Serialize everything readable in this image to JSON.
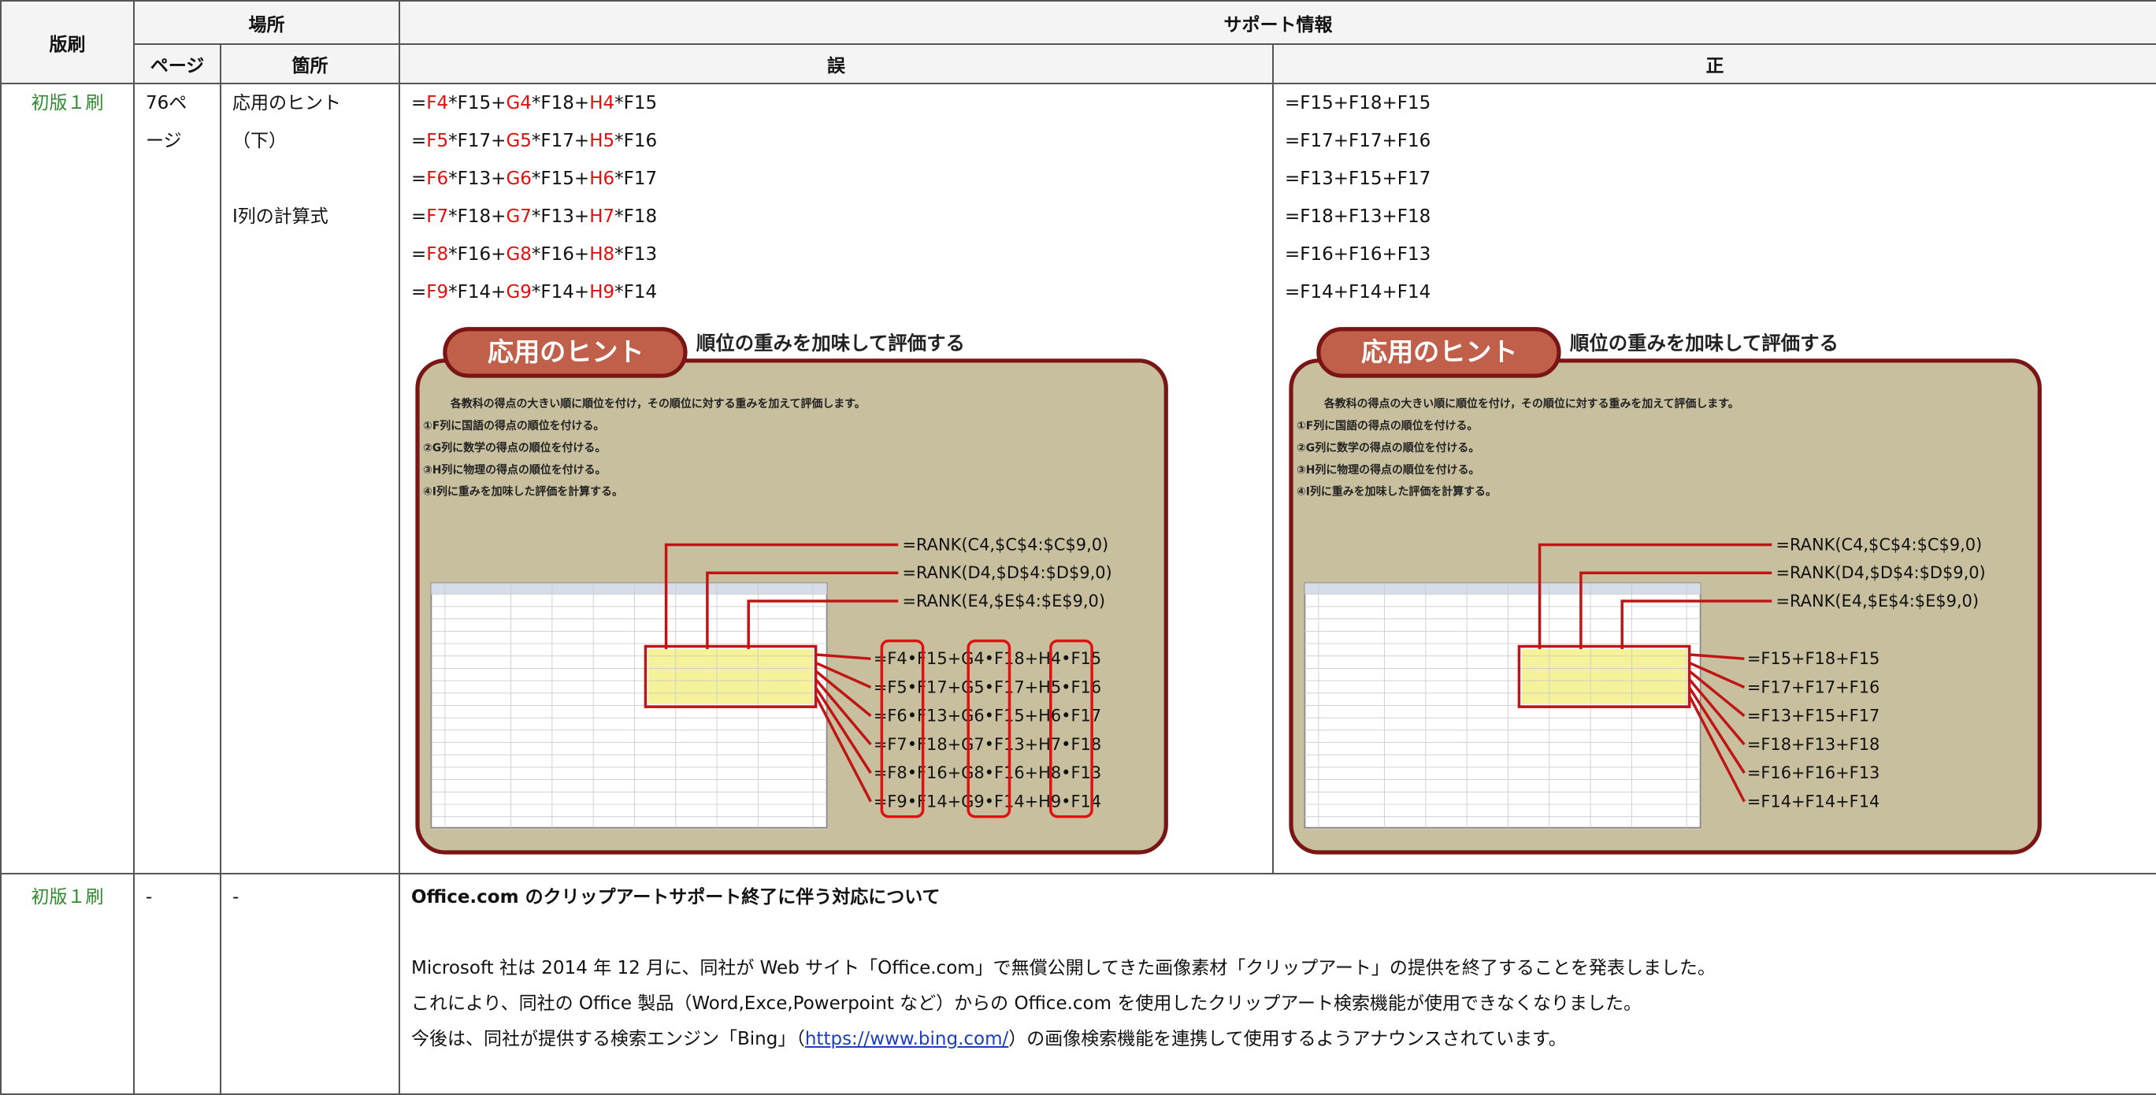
{
  "header": {
    "edition": "版刷",
    "place": "場所",
    "support": "サポート情報",
    "page": "ページ",
    "location": "箇所",
    "wrong": "誤",
    "right": "正"
  },
  "rows": [
    {
      "edition": "初版１刷",
      "page": "76ページ",
      "location": [
        "応用のヒント",
        "（下）",
        "",
        "I列の計算式"
      ],
      "wrong": [
        [
          "=",
          "F4",
          "*F15+",
          "G4",
          "*F18+",
          "H4",
          "*F15"
        ],
        [
          "=",
          "F5",
          "*F17+",
          "G5",
          "*F17+",
          "H5",
          "*F16"
        ],
        [
          "=",
          "F6",
          "*F13+",
          "G6",
          "*F15+",
          "H6",
          "*F17"
        ],
        [
          "=",
          "F7",
          "*F18+",
          "G7",
          "*F13+",
          "H7",
          "*F18"
        ],
        [
          "=",
          "F8",
          "*F16+",
          "G8",
          "*F16+",
          "H8",
          "*F13"
        ],
        [
          "=",
          "F9",
          "*F14+",
          "G9",
          "*F14+",
          "H9",
          "*F14"
        ]
      ],
      "right": [
        "=F15+F18+F15",
        "=F17+F17+F16",
        "=F13+F15+F17",
        "=F18+F13+F18",
        "=F16+F16+F13",
        "=F14+F14+F14"
      ],
      "figure": {
        "title": "応用のヒント",
        "subtitle": "順位の重みを加味して評価する",
        "lines": [
          "各教科の得点の大きい順に順位を付け，その順位に対する重みを加えて評価します。",
          "①F列に国語の得点の順位を付ける。",
          "②G列に数学の得点の順位を付ける。",
          "③H列に物理の得点の順位を付ける。",
          "④I列に重みを加味した評価を計算する。"
        ],
        "rank": [
          "=RANK(C4,$C$4:$C$9,0)",
          "=RANK(D4,$D$4:$D$9,0)",
          "=RANK(E4,$E$4:$E$9,0)"
        ]
      },
      "wrong_figure": [
        "=F4•F15+G4•F18+H4•F15",
        "=F5•F17+G5•F17+H5•F16",
        "=F6•F13+G6•F15+H6•F17",
        "=F7•F18+G7•F13+H7•F18",
        "=F8•F16+G8•F16+H8•F13",
        "=F9•F14+G9•F14+H9•F14"
      ],
      "right_figure": [
        "=F15+F18+F15",
        "=F17+F17+F16",
        "=F13+F15+F17",
        "=F18+F13+F18",
        "=F16+F16+F13",
        "=F14+F14+F14"
      ]
    },
    {
      "edition": "初版１刷",
      "page": "-",
      "location": "-",
      "title": "Office.com のクリップアートサポート終了に伴う対応について",
      "paragraphs": [
        "Microsoft 社は 2014 年 12 月に、同社が Web サイト「Office.com」で無償公開してきた画像素材「クリップアート」の提供を終了することを発表しました。",
        "これにより、同社の Office 製品（Word,Exce,Powerpoint など）からの Office.com を使用したクリップアート検索機能が使用できなくなりました。"
      ],
      "last": [
        "今後は、同社が提供する検索エンジン「Bing」（",
        "https://www.bing.com/",
        "）の画像検索機能を連携して使用するようアナウンスされています。"
      ]
    }
  ]
}
